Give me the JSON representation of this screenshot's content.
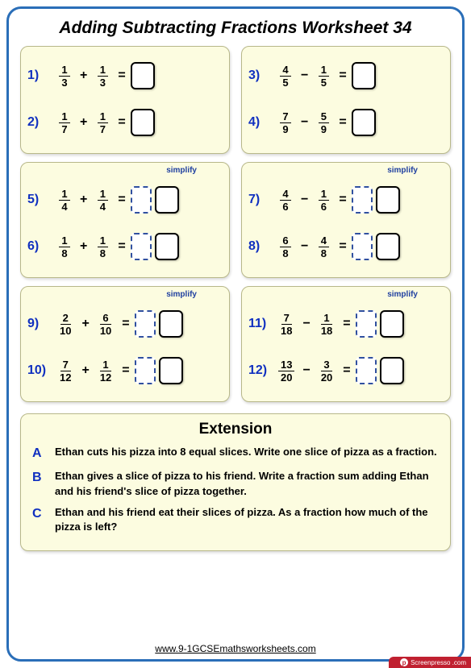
{
  "title": "Adding Subtracting Fractions Worksheet 34",
  "simplify_label": "simplify",
  "panels": [
    {
      "has_simplify": false,
      "problems": [
        {
          "num": "1)",
          "a_n": "1",
          "a_d": "3",
          "op": "+",
          "b_n": "1",
          "b_d": "3",
          "boxes": [
            "solid"
          ]
        },
        {
          "num": "2)",
          "a_n": "1",
          "a_d": "7",
          "op": "+",
          "b_n": "1",
          "b_d": "7",
          "boxes": [
            "solid"
          ]
        }
      ]
    },
    {
      "has_simplify": false,
      "problems": [
        {
          "num": "3)",
          "a_n": "4",
          "a_d": "5",
          "op": "−",
          "b_n": "1",
          "b_d": "5",
          "boxes": [
            "solid"
          ]
        },
        {
          "num": "4)",
          "a_n": "7",
          "a_d": "9",
          "op": "−",
          "b_n": "5",
          "b_d": "9",
          "boxes": [
            "solid"
          ]
        }
      ]
    },
    {
      "has_simplify": true,
      "problems": [
        {
          "num": "5)",
          "a_n": "1",
          "a_d": "4",
          "op": "+",
          "b_n": "1",
          "b_d": "4",
          "boxes": [
            "dashed",
            "solid"
          ]
        },
        {
          "num": "6)",
          "a_n": "1",
          "a_d": "8",
          "op": "+",
          "b_n": "1",
          "b_d": "8",
          "boxes": [
            "dashed",
            "solid"
          ]
        }
      ]
    },
    {
      "has_simplify": true,
      "problems": [
        {
          "num": "7)",
          "a_n": "4",
          "a_d": "6",
          "op": "−",
          "b_n": "1",
          "b_d": "6",
          "boxes": [
            "dashed",
            "solid"
          ]
        },
        {
          "num": "8)",
          "a_n": "6",
          "a_d": "8",
          "op": "−",
          "b_n": "4",
          "b_d": "8",
          "boxes": [
            "dashed",
            "solid"
          ]
        }
      ]
    },
    {
      "has_simplify": true,
      "problems": [
        {
          "num": "9)",
          "a_n": "2",
          "a_d": "10",
          "op": "+",
          "b_n": "6",
          "b_d": "10",
          "boxes": [
            "dashed",
            "solid"
          ]
        },
        {
          "num": "10)",
          "a_n": "7",
          "a_d": "12",
          "op": "+",
          "b_n": "1",
          "b_d": "12",
          "boxes": [
            "dashed",
            "solid"
          ]
        }
      ]
    },
    {
      "has_simplify": true,
      "problems": [
        {
          "num": "11)",
          "a_n": "7",
          "a_d": "18",
          "op": "−",
          "b_n": "1",
          "b_d": "18",
          "boxes": [
            "dashed",
            "solid"
          ]
        },
        {
          "num": "12)",
          "a_n": "13",
          "a_d": "20",
          "op": "−",
          "b_n": "3",
          "b_d": "20",
          "boxes": [
            "dashed",
            "solid"
          ]
        }
      ]
    }
  ],
  "extension": {
    "title": "Extension",
    "items": [
      {
        "letter": "A",
        "text": "Ethan cuts his pizza into 8 equal slices. Write one slice of pizza as a fraction."
      },
      {
        "letter": "B",
        "text": "Ethan gives a slice of pizza to his friend. Write a fraction sum adding Ethan and his friend's slice of pizza together."
      },
      {
        "letter": "C",
        "text": "Ethan and his friend eat their slices of pizza. As a fraction how much of the pizza is left?"
      }
    ]
  },
  "url": "www.9-1GCSEmathsworksheets.com",
  "watermark": {
    "icon": "p",
    "text": "Screenpresso .com"
  }
}
